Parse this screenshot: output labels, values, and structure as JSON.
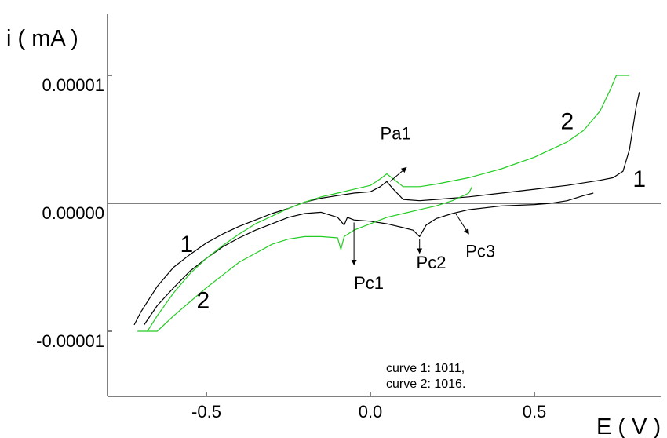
{
  "chart_data": {
    "type": "line",
    "xlabel": "E ( V )",
    "ylabel": "i ( mA )",
    "xlim": [
      -0.82,
      0.86
    ],
    "ylim": [
      -1.5e-05,
      1.5e-05
    ],
    "x_ticks": [
      -0.5,
      0.0,
      0.5
    ],
    "x_tick_labels": [
      "-0.5",
      "0.0",
      "0.5"
    ],
    "y_ticks": [
      1e-05,
      0.0,
      -1e-05
    ],
    "y_tick_labels": [
      "0.00001",
      "0.00000",
      "-0.00001"
    ],
    "grid": false,
    "zero_line": true,
    "colors": {
      "curve1": "#000000",
      "curve2": "#22cc22",
      "axis": "#000000"
    },
    "series": [
      {
        "curve_label": "1",
        "color": "#000000",
        "forward": [
          [
            -0.72,
            -9.5e-06
          ],
          [
            -0.7,
            -8.5e-06
          ],
          [
            -0.65,
            -6.5e-06
          ],
          [
            -0.6,
            -5e-06
          ],
          [
            -0.55,
            -4e-06
          ],
          [
            -0.5,
            -3.1e-06
          ],
          [
            -0.45,
            -2.4e-06
          ],
          [
            -0.4,
            -1.8e-06
          ],
          [
            -0.35,
            -1.3e-06
          ],
          [
            -0.3,
            -8e-07
          ],
          [
            -0.25,
            -4e-07
          ],
          [
            -0.2,
            1e-07
          ],
          [
            -0.15,
            4e-07
          ],
          [
            -0.1,
            6e-07
          ],
          [
            -0.05,
            8e-07
          ],
          [
            0.0,
            9e-07
          ],
          [
            0.03,
            1.3e-06
          ],
          [
            0.05,
            1.7e-06
          ],
          [
            0.07,
            1.1e-06
          ],
          [
            0.1,
            3e-07
          ],
          [
            0.15,
            2e-07
          ],
          [
            0.2,
            3e-07
          ],
          [
            0.3,
            5e-07
          ],
          [
            0.4,
            8e-07
          ],
          [
            0.5,
            1.1e-06
          ],
          [
            0.6,
            1.4e-06
          ],
          [
            0.7,
            1.8e-06
          ],
          [
            0.74,
            2e-06
          ],
          [
            0.77,
            2.5e-06
          ],
          [
            0.79,
            4.2e-06
          ],
          [
            0.81,
            7.5e-06
          ],
          [
            0.82,
            8.7e-06
          ]
        ],
        "reverse": [
          [
            0.68,
            8e-07
          ],
          [
            0.65,
            6e-07
          ],
          [
            0.6,
            2e-07
          ],
          [
            0.55,
            0.0
          ],
          [
            0.5,
            -1e-07
          ],
          [
            0.4,
            -2e-07
          ],
          [
            0.3,
            -5e-07
          ],
          [
            0.25,
            -8e-07
          ],
          [
            0.2,
            -1.2e-06
          ],
          [
            0.17,
            -1.7e-06
          ],
          [
            0.15,
            -2.6e-06
          ],
          [
            0.13,
            -2.1e-06
          ],
          [
            0.1,
            -1.9e-06
          ],
          [
            0.05,
            -1.6e-06
          ],
          [
            0.0,
            -1.4e-06
          ],
          [
            -0.05,
            -1.3e-06
          ],
          [
            -0.07,
            -1.1e-06
          ],
          [
            -0.08,
            -1.7e-06
          ],
          [
            -0.1,
            -1.1e-06
          ],
          [
            -0.15,
            -7e-07
          ],
          [
            -0.2,
            -8e-07
          ],
          [
            -0.25,
            -1.1e-06
          ],
          [
            -0.3,
            -1.6e-06
          ],
          [
            -0.35,
            -2.1e-06
          ],
          [
            -0.4,
            -2.7e-06
          ],
          [
            -0.45,
            -3.4e-06
          ],
          [
            -0.5,
            -4.3e-06
          ],
          [
            -0.55,
            -5.3e-06
          ],
          [
            -0.6,
            -6.6e-06
          ],
          [
            -0.65,
            -8e-06
          ],
          [
            -0.69,
            -9.5e-06
          ]
        ]
      },
      {
        "curve_label": "2",
        "color": "#22cc22",
        "forward": [
          [
            -0.68,
            -1e-05
          ],
          [
            -0.65,
            -8.8e-06
          ],
          [
            -0.6,
            -7e-06
          ],
          [
            -0.55,
            -5.5e-06
          ],
          [
            -0.5,
            -4.3e-06
          ],
          [
            -0.45,
            -3.3e-06
          ],
          [
            -0.4,
            -2.4e-06
          ],
          [
            -0.35,
            -1.6e-06
          ],
          [
            -0.3,
            -1e-06
          ],
          [
            -0.25,
            -4e-07
          ],
          [
            -0.2,
            1e-07
          ],
          [
            -0.15,
            5e-07
          ],
          [
            -0.1,
            8e-07
          ],
          [
            -0.05,
            1.1e-06
          ],
          [
            0.0,
            1.4e-06
          ],
          [
            0.03,
            1.9e-06
          ],
          [
            0.05,
            2.3e-06
          ],
          [
            0.07,
            1.9e-06
          ],
          [
            0.1,
            1.3e-06
          ],
          [
            0.15,
            1.3e-06
          ],
          [
            0.2,
            1.5e-06
          ],
          [
            0.3,
            2e-06
          ],
          [
            0.4,
            2.7e-06
          ],
          [
            0.5,
            3.6e-06
          ],
          [
            0.6,
            4.8e-06
          ],
          [
            0.65,
            5.7e-06
          ],
          [
            0.7,
            7.2e-06
          ],
          [
            0.73,
            8.8e-06
          ],
          [
            0.75,
            1e-05
          ],
          [
            0.79,
            1e-05
          ]
        ],
        "reverse": [
          [
            0.31,
            1.3e-06
          ],
          [
            0.3,
            8e-07
          ],
          [
            0.25,
            2e-07
          ],
          [
            0.2,
            -2e-07
          ],
          [
            0.15,
            -5e-07
          ],
          [
            0.1,
            -8e-07
          ],
          [
            0.05,
            -1.1e-06
          ],
          [
            0.0,
            -1.6e-06
          ],
          [
            -0.05,
            -2.1e-06
          ],
          [
            -0.08,
            -2.6e-06
          ],
          [
            -0.09,
            -3.6e-06
          ],
          [
            -0.1,
            -2.7e-06
          ],
          [
            -0.15,
            -2.6e-06
          ],
          [
            -0.2,
            -2.6e-06
          ],
          [
            -0.25,
            -2.8e-06
          ],
          [
            -0.3,
            -3.2e-06
          ],
          [
            -0.35,
            -3.9e-06
          ],
          [
            -0.4,
            -4.6e-06
          ],
          [
            -0.45,
            -5.6e-06
          ],
          [
            -0.5,
            -6.6e-06
          ],
          [
            -0.55,
            -7.7e-06
          ],
          [
            -0.6,
            -8.8e-06
          ],
          [
            -0.65,
            -1e-05
          ],
          [
            -0.71,
            -1e-05
          ]
        ]
      }
    ],
    "annotations": [
      {
        "text": "Pa1",
        "label_at": [
          0.03,
          5e-06
        ],
        "arrow_from": [
          0.06,
          1.7e-06
        ],
        "arrow_to": [
          0.11,
          2.8e-06
        ]
      },
      {
        "text": "Pc1",
        "label_at": [
          -0.05,
          -6.7e-06
        ],
        "arrow_from": [
          -0.05,
          -1.5e-06
        ],
        "arrow_to": [
          -0.05,
          -4.8e-06
        ]
      },
      {
        "text": "Pc2",
        "label_at": [
          0.14,
          -5.1e-06
        ],
        "arrow_from": [
          0.15,
          -2.8e-06
        ],
        "arrow_to": [
          0.15,
          -3.9e-06
        ]
      },
      {
        "text": "Pc3",
        "label_at": [
          0.29,
          -4.2e-06
        ],
        "arrow_from": [
          0.26,
          -8e-07
        ],
        "arrow_to": [
          0.3,
          -2.4e-06
        ]
      }
    ],
    "curve_numbers": [
      {
        "text": "1",
        "at": [
          -0.58,
          -3.8e-06
        ]
      },
      {
        "text": "1",
        "at": [
          0.8,
          1.3e-06
        ]
      },
      {
        "text": "2",
        "at": [
          -0.53,
          -8.2e-06
        ]
      },
      {
        "text": "2",
        "at": [
          0.58,
          5.8e-06
        ]
      }
    ],
    "legend": {
      "placement": "bottom-center",
      "lines": [
        "curve 1: 1011,",
        "curve 2: 1016."
      ]
    }
  }
}
